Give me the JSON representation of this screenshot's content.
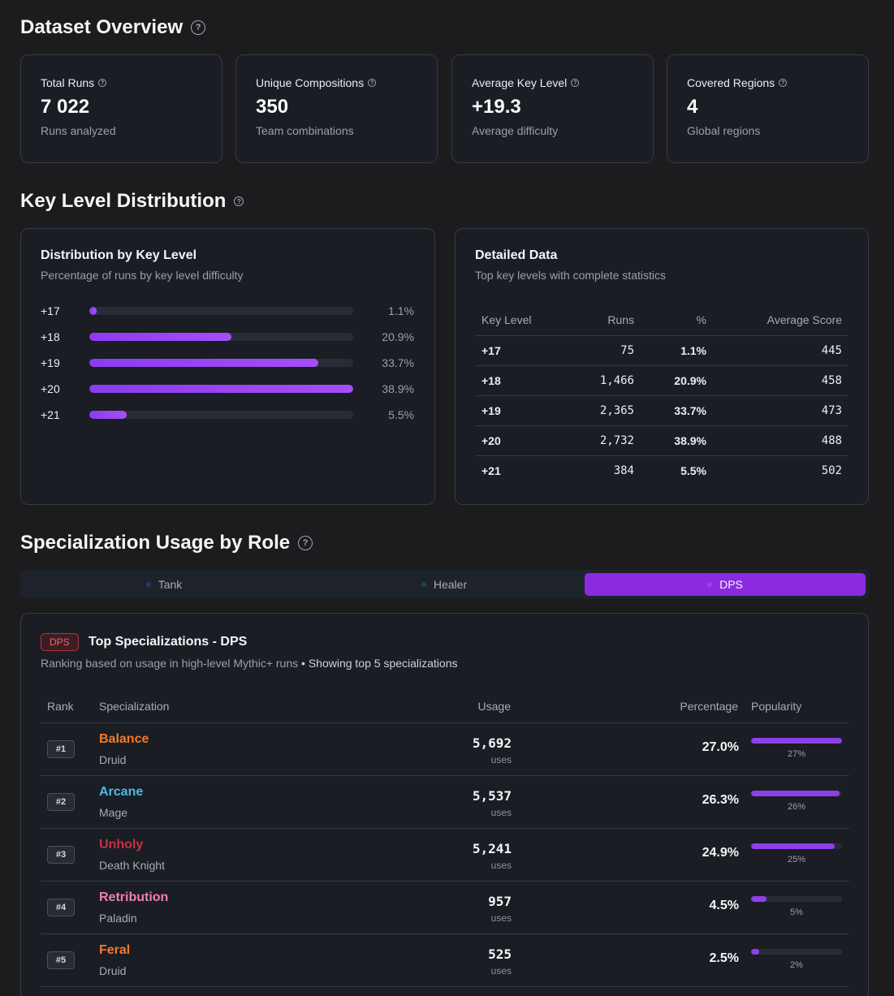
{
  "overview": {
    "title": "Dataset Overview",
    "cards": [
      {
        "label": "Total Runs",
        "value": "7 022",
        "sub": "Runs analyzed"
      },
      {
        "label": "Unique Compositions",
        "value": "350",
        "sub": "Team combinations"
      },
      {
        "label": "Average Key Level",
        "value": "+19.3",
        "sub": "Average difficulty"
      },
      {
        "label": "Covered Regions",
        "value": "4",
        "sub": "Global regions"
      }
    ]
  },
  "distribution": {
    "title": "Key Level Distribution",
    "chart_panel": {
      "title": "Distribution by Key Level",
      "subtitle": "Percentage of runs by key level difficulty"
    },
    "table_panel": {
      "title": "Detailed Data",
      "subtitle": "Top key levels with complete statistics",
      "headers": [
        "Key Level",
        "Runs",
        "%",
        "Average Score"
      ],
      "rows": [
        [
          "+17",
          "75",
          "1.1%",
          "445"
        ],
        [
          "+18",
          "1,466",
          "20.9%",
          "458"
        ],
        [
          "+19",
          "2,365",
          "33.7%",
          "473"
        ],
        [
          "+20",
          "2,732",
          "38.9%",
          "488"
        ],
        [
          "+21",
          "384",
          "5.5%",
          "502"
        ]
      ]
    }
  },
  "chart_data": {
    "type": "bar",
    "orientation": "horizontal",
    "title": "Distribution by Key Level",
    "subtitle": "Percentage of runs by key level difficulty",
    "categories": [
      "+17",
      "+18",
      "+19",
      "+20",
      "+21"
    ],
    "values": [
      1.1,
      20.9,
      33.7,
      38.9,
      5.5
    ],
    "value_labels": [
      "1.1%",
      "20.9%",
      "33.7%",
      "38.9%",
      "5.5%"
    ],
    "xlim": [
      0,
      38.9
    ],
    "bar_color": "#8b3cf0",
    "track_color": "#272d38"
  },
  "specialization": {
    "title": "Specialization Usage by Role",
    "tabs": [
      {
        "label": "Tank",
        "dot_color": "#2a3a6a",
        "active": false
      },
      {
        "label": "Healer",
        "dot_color": "#1f4a3a",
        "active": false
      },
      {
        "label": "DPS",
        "dot_color": "#b13ad8",
        "active": true
      }
    ],
    "badge": "DPS",
    "card_title": "Top Specializations - DPS",
    "card_subtitle": "Ranking based on usage in high-level Mythic+ runs",
    "card_subtitle_extra": "• Showing top 5 specializations",
    "headers": {
      "rank": "Rank",
      "spec": "Specialization",
      "usage": "Usage",
      "percentage": "Percentage",
      "popularity": "Popularity"
    },
    "usage_unit": "uses",
    "rows": [
      {
        "rank": "#1",
        "name": "Balance",
        "class": "Druid",
        "color": "#f4792b",
        "usage": "5,692",
        "percentage": "27.0%",
        "popularity": 27,
        "popularity_label": "27%"
      },
      {
        "rank": "#2",
        "name": "Arcane",
        "class": "Mage",
        "color": "#4fb9e3",
        "usage": "5,537",
        "percentage": "26.3%",
        "popularity": 26.3,
        "popularity_label": "26%"
      },
      {
        "rank": "#3",
        "name": "Unholy",
        "class": "Death Knight",
        "color": "#c93048",
        "usage": "5,241",
        "percentage": "24.9%",
        "popularity": 24.9,
        "popularity_label": "25%"
      },
      {
        "rank": "#4",
        "name": "Retribution",
        "class": "Paladin",
        "color": "#ee7fb1",
        "usage": "957",
        "percentage": "4.5%",
        "popularity": 4.5,
        "popularity_label": "5%"
      },
      {
        "rank": "#5",
        "name": "Feral",
        "class": "Druid",
        "color": "#f4792b",
        "usage": "525",
        "percentage": "2.5%",
        "popularity": 2.5,
        "popularity_label": "2%"
      }
    ],
    "popularity_max": 27
  }
}
